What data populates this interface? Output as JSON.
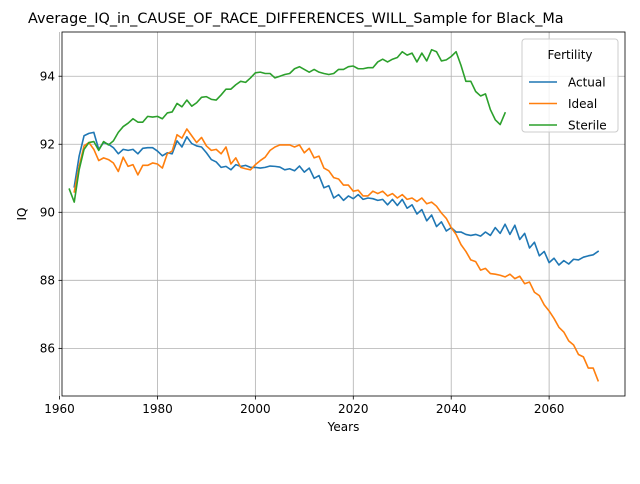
{
  "chart_data": {
    "type": "line",
    "title": "Average_IQ_in_CAUSE_OF_RACE_DIFFERENCES_WILL_Sample for Black_Ma",
    "xlabel": "Years",
    "ylabel": "IQ",
    "xlim": [
      1960.5,
      2075.5
    ],
    "ylim": [
      84.6,
      95.3
    ],
    "xticks": [
      1960,
      1980,
      2000,
      2020,
      2040,
      2060
    ],
    "yticks": [
      86,
      88,
      90,
      92,
      94
    ],
    "grid": true,
    "legend": {
      "title": "Fertility",
      "location": "upper right"
    },
    "series": [
      {
        "name": "Actual",
        "color": "#1f77b4",
        "x": [
          1963,
          1964,
          1965,
          1966,
          1967,
          1968,
          1969,
          1970,
          1971,
          1972,
          1973,
          1974,
          1975,
          1976,
          1977,
          1978,
          1979,
          1980,
          1981,
          1982,
          1983,
          1984,
          1985,
          1986,
          1987,
          1988,
          1989,
          1990,
          1991,
          1992,
          1993,
          1994,
          1995,
          1996,
          1997,
          1998,
          1999,
          2000,
          2001,
          2002,
          2003,
          2004,
          2005,
          2006,
          2007,
          2008,
          2009,
          2010,
          2011,
          2012,
          2013,
          2014,
          2015,
          2016,
          2017,
          2018,
          2019,
          2020,
          2021,
          2022,
          2023,
          2024,
          2025,
          2026,
          2027,
          2028,
          2029,
          2030,
          2031,
          2032,
          2033,
          2034,
          2035,
          2036,
          2037,
          2038,
          2039,
          2040,
          2041,
          2042,
          2043,
          2044,
          2045,
          2046,
          2047,
          2048,
          2049,
          2050,
          2051,
          2052,
          2053,
          2054,
          2055,
          2056,
          2057,
          2058,
          2059,
          2060,
          2061,
          2062,
          2063,
          2064,
          2065,
          2066,
          2067,
          2068,
          2069,
          2070
        ],
        "y": [
          90.75,
          91.65,
          92.25,
          92.32,
          92.35,
          91.85,
          92.05,
          92.0,
          91.9,
          91.72,
          91.85,
          91.82,
          91.85,
          91.72,
          91.88,
          91.9,
          91.9,
          91.8,
          91.66,
          91.75,
          91.72,
          92.1,
          91.92,
          92.22,
          92.02,
          91.95,
          91.92,
          91.75,
          91.55,
          91.48,
          91.32,
          91.35,
          91.25,
          91.4,
          91.35,
          91.38,
          91.32,
          91.32,
          91.3,
          91.32,
          91.36,
          91.35,
          91.33,
          91.25,
          91.28,
          91.22,
          91.36,
          91.18,
          91.3,
          91.0,
          91.08,
          90.72,
          90.78,
          90.42,
          90.52,
          90.35,
          90.48,
          90.4,
          90.52,
          90.38,
          90.42,
          90.4,
          90.35,
          90.38,
          90.22,
          90.38,
          90.2,
          90.38,
          90.12,
          90.22,
          89.95,
          90.08,
          89.75,
          89.92,
          89.58,
          89.72,
          89.45,
          89.55,
          89.42,
          89.42,
          89.35,
          89.32,
          89.35,
          89.3,
          89.42,
          89.32,
          89.55,
          89.38,
          89.65,
          89.35,
          89.62,
          89.2,
          89.38,
          88.95,
          89.12,
          88.72,
          88.85,
          88.52,
          88.65,
          88.45,
          88.58,
          88.48,
          88.62,
          88.6,
          88.68,
          88.72,
          88.75,
          88.85
        ]
      },
      {
        "name": "Ideal",
        "color": "#ff7f0e",
        "x": [
          1963,
          1964,
          1965,
          1966,
          1967,
          1968,
          1969,
          1970,
          1971,
          1972,
          1973,
          1974,
          1975,
          1976,
          1977,
          1978,
          1979,
          1980,
          1981,
          1982,
          1983,
          1984,
          1985,
          1986,
          1987,
          1988,
          1989,
          1990,
          1991,
          1992,
          1993,
          1994,
          1995,
          1996,
          1997,
          1998,
          1999,
          2000,
          2001,
          2002,
          2003,
          2004,
          2005,
          2006,
          2007,
          2008,
          2009,
          2010,
          2011,
          2012,
          2013,
          2014,
          2015,
          2016,
          2017,
          2018,
          2019,
          2020,
          2021,
          2022,
          2023,
          2024,
          2025,
          2026,
          2027,
          2028,
          2029,
          2030,
          2031,
          2032,
          2033,
          2034,
          2035,
          2036,
          2037,
          2038,
          2039,
          2040,
          2041,
          2042,
          2043,
          2044,
          2045,
          2046,
          2047,
          2048,
          2049,
          2050,
          2051,
          2052,
          2053,
          2054,
          2055,
          2056,
          2057,
          2058,
          2059,
          2060,
          2061,
          2062,
          2063,
          2064,
          2065,
          2066,
          2067,
          2068,
          2069,
          2070
        ],
        "y": [
          90.6,
          91.35,
          91.95,
          92.05,
          91.85,
          91.52,
          91.6,
          91.55,
          91.45,
          91.2,
          91.62,
          91.35,
          91.4,
          91.1,
          91.38,
          91.38,
          91.45,
          91.42,
          91.3,
          91.72,
          91.8,
          92.28,
          92.18,
          92.45,
          92.25,
          92.05,
          92.2,
          91.95,
          91.82,
          91.85,
          91.72,
          91.92,
          91.42,
          91.6,
          91.32,
          91.28,
          91.25,
          91.4,
          91.52,
          91.62,
          91.82,
          91.92,
          91.98,
          91.98,
          91.98,
          91.92,
          91.98,
          91.75,
          91.88,
          91.6,
          91.65,
          91.3,
          91.22,
          91.02,
          90.98,
          90.8,
          90.8,
          90.62,
          90.65,
          90.48,
          90.48,
          90.62,
          90.55,
          90.62,
          90.48,
          90.55,
          90.42,
          90.52,
          90.38,
          90.42,
          90.32,
          90.42,
          90.25,
          90.3,
          90.18,
          89.98,
          89.82,
          89.55,
          89.35,
          89.05,
          88.85,
          88.6,
          88.55,
          88.3,
          88.35,
          88.2,
          88.18,
          88.15,
          88.1,
          88.18,
          88.05,
          88.12,
          87.9,
          87.95,
          87.65,
          87.55,
          87.28,
          87.1,
          86.88,
          86.62,
          86.48,
          86.22,
          86.1,
          85.82,
          85.75,
          85.42,
          85.42,
          85.05
        ]
      },
      {
        "name": "Sterile",
        "color": "#2ca02c",
        "x": [
          1962,
          1963,
          1964,
          1965,
          1966,
          1967,
          1968,
          1969,
          1970,
          1971,
          1972,
          1973,
          1974,
          1975,
          1976,
          1977,
          1978,
          1979,
          1980,
          1981,
          1982,
          1983,
          1984,
          1985,
          1986,
          1987,
          1988,
          1989,
          1990,
          1991,
          1992,
          1993,
          1994,
          1995,
          1996,
          1997,
          1998,
          1999,
          2000,
          2001,
          2002,
          2003,
          2004,
          2005,
          2006,
          2007,
          2008,
          2009,
          2010,
          2011,
          2012,
          2013,
          2014,
          2015,
          2016,
          2017,
          2018,
          2019,
          2020,
          2021,
          2022,
          2023,
          2024,
          2025,
          2026,
          2027,
          2028,
          2029,
          2030,
          2031,
          2032,
          2033,
          2034,
          2035,
          2036,
          2037,
          2038,
          2039,
          2040,
          2041,
          2042,
          2043,
          2044,
          2045,
          2046,
          2047,
          2048,
          2049,
          2050,
          2051
        ],
        "y": [
          90.68,
          90.3,
          91.25,
          91.85,
          92.05,
          92.08,
          91.82,
          92.08,
          91.98,
          92.1,
          92.35,
          92.52,
          92.62,
          92.75,
          92.65,
          92.65,
          92.82,
          92.8,
          92.82,
          92.75,
          92.92,
          92.95,
          93.2,
          93.1,
          93.3,
          93.12,
          93.22,
          93.38,
          93.4,
          93.32,
          93.3,
          93.45,
          93.62,
          93.62,
          93.75,
          93.85,
          93.82,
          93.95,
          94.1,
          94.12,
          94.08,
          94.08,
          93.95,
          94.0,
          94.05,
          94.08,
          94.22,
          94.28,
          94.2,
          94.12,
          94.2,
          94.12,
          94.08,
          94.05,
          94.08,
          94.2,
          94.2,
          94.28,
          94.3,
          94.22,
          94.22,
          94.25,
          94.25,
          94.42,
          94.5,
          94.42,
          94.5,
          94.55,
          94.72,
          94.62,
          94.68,
          94.42,
          94.68,
          94.45,
          94.78,
          94.72,
          94.45,
          94.48,
          94.58,
          94.72,
          94.32,
          93.85,
          93.85,
          93.55,
          93.42,
          93.48,
          93.02,
          92.72,
          92.58,
          92.92
        ]
      }
    ]
  }
}
